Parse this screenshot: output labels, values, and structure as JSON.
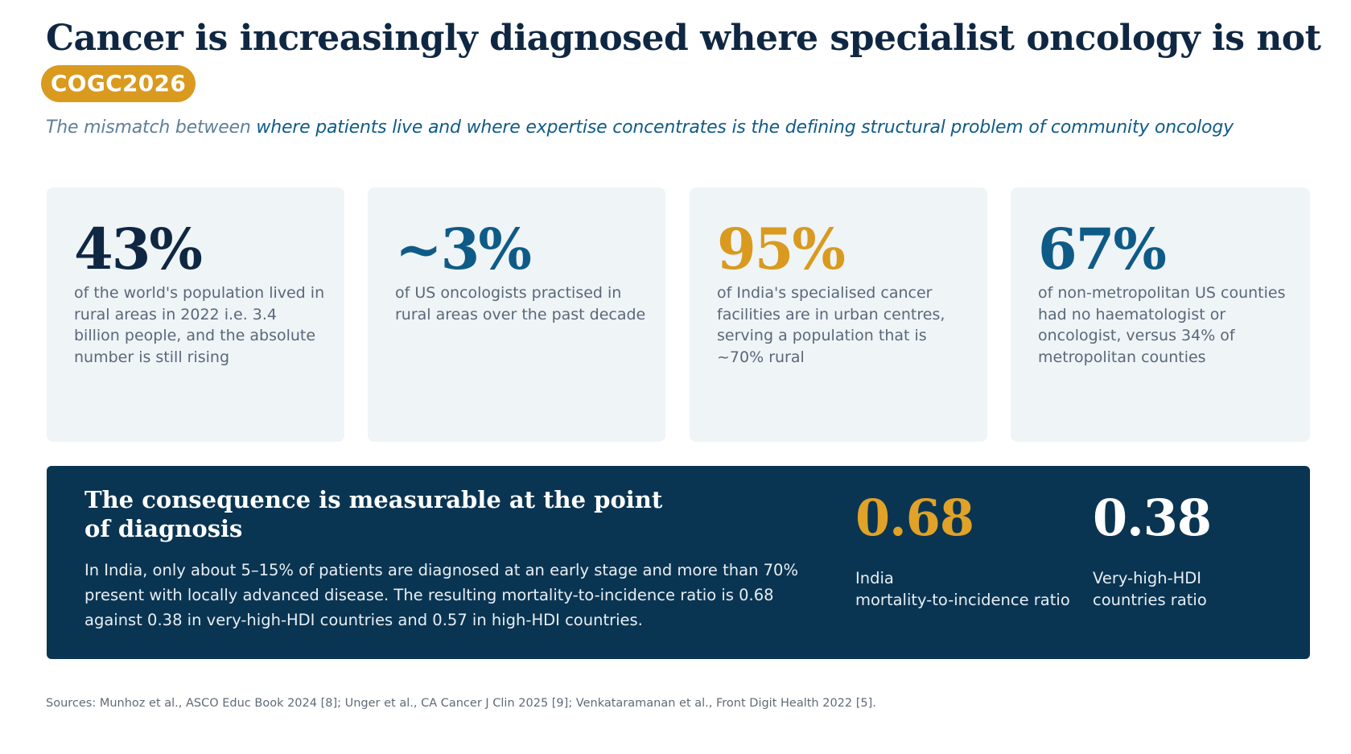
{
  "header": {
    "title": "Cancer is increasingly diagnosed where specialist oncology is not",
    "badge": "COGC2026",
    "subtitle_lead": "The mismatch between",
    "subtitle_rest": " where patients live and where expertise concentrates is the defining structural problem of community oncology"
  },
  "cards": [
    {
      "stat": "43%",
      "color": "#0f2742",
      "desc": "of the world's population lived in rural areas in 2022 i.e. 3.4 billion people, and the absolute number is still rising"
    },
    {
      "stat": "~3%",
      "color": "#0f5b87",
      "desc": "of US oncologists practised in rural areas over the past decade"
    },
    {
      "stat": "95%",
      "color": "#d99a1f",
      "desc": "of India's specialised cancer facilities are in urban centres, serving a population that is ~70% rural"
    },
    {
      "stat": "67%",
      "color": "#0f5b87",
      "desc": "of non-metropolitan US counties had no haematologist or oncologist, versus 34% of metropolitan counties"
    }
  ],
  "panel": {
    "title": "The consequence is measurable at the point of diagnosis",
    "body": "In India, only about 5–15% of patients are diagnosed at an early stage and more than 70% present with locally advanced disease. The resulting mortality-to-incidence ratio is 0.68 against 0.38 in very-high-HDI countries and 0.57 in high-HDI countries.",
    "metrics": [
      {
        "value": "0.68",
        "color": "#e0a228",
        "label_line1": "India",
        "label_line2": "mortality-to-incidence ratio"
      },
      {
        "value": "0.38",
        "color": "#ffffff",
        "label_line1": "Very-high-HDI",
        "label_line2": "countries ratio"
      }
    ]
  },
  "footer": {
    "sources": "Sources: Munhoz et al., ASCO Educ Book 2024 [8]; Unger et al., CA Cancer J Clin 2025 [9]; Venkataramanan et al., Front Digit Health 2022 [5]."
  }
}
